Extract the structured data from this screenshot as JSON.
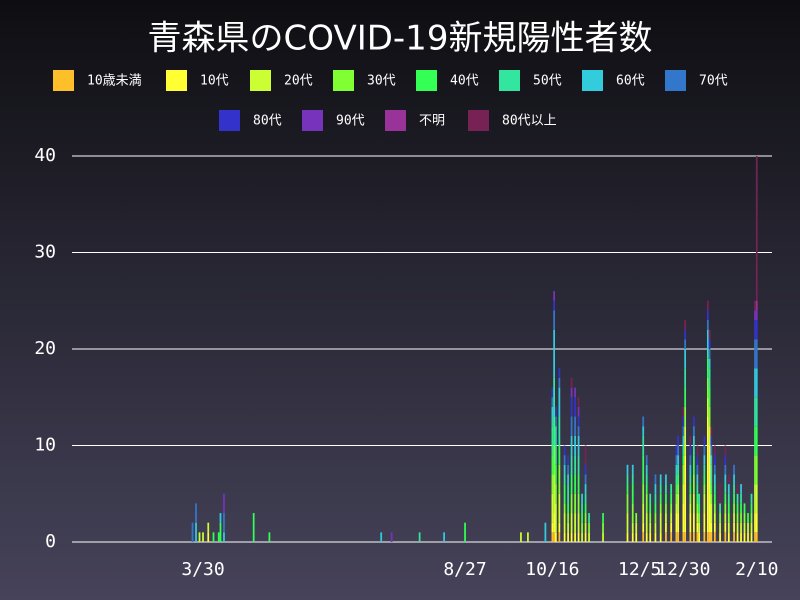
{
  "chart_data": {
    "type": "bar",
    "stacked": true,
    "title": "青森県のCOVID-19新規陽性者数",
    "x": [
      84,
      86,
      88,
      90,
      93,
      96,
      99,
      100,
      102,
      119,
      128,
      192,
      198,
      214,
      228,
      240,
      272,
      276,
      286,
      290,
      291,
      292,
      294,
      297,
      299,
      301,
      303,
      305,
      307,
      309,
      311,
      319,
      333,
      336,
      338,
      342,
      344,
      346,
      349,
      352,
      355,
      358,
      361,
      362,
      365,
      366,
      369,
      371,
      373,
      374,
      377,
      379,
      380,
      381,
      383,
      386,
      389,
      391,
      394,
      396,
      398,
      400,
      402,
      404,
      406,
      407
    ],
    "xlim": [
      15,
      410
    ],
    "xticks": [
      {
        "value": 90,
        "label": "3/30"
      },
      {
        "value": 240,
        "label": "8/27"
      },
      {
        "value": 290,
        "label": "10/16"
      },
      {
        "value": 340,
        "label": "12/5"
      },
      {
        "value": 365,
        "label": "12/30"
      },
      {
        "value": 407,
        "label": "2/10"
      }
    ],
    "ylim": [
      0,
      40
    ],
    "yticks": [
      0,
      10,
      20,
      30,
      40
    ],
    "grid": true,
    "series": [
      {
        "name": "10歳未満",
        "color": "#ffbf2a",
        "values": [
          0,
          0,
          0,
          0,
          0,
          0,
          0,
          0,
          0,
          0,
          0,
          0,
          0,
          0,
          0,
          0,
          0,
          0,
          0,
          1,
          1,
          0,
          1,
          0,
          0,
          0,
          0,
          0,
          0,
          0,
          0,
          0,
          0,
          0,
          0,
          1,
          0,
          0,
          0,
          0,
          1,
          1,
          1,
          1,
          1,
          1,
          1,
          1,
          1,
          0,
          1,
          1,
          1,
          1,
          1,
          0,
          1,
          0,
          1,
          0,
          0,
          0,
          0,
          0,
          1,
          1
        ]
      },
      {
        "name": "10代",
        "color": "#ffff33",
        "values": [
          0,
          0,
          0,
          0,
          1,
          0,
          0,
          0,
          0,
          0,
          0,
          0,
          0,
          0,
          0,
          0,
          0,
          0,
          0,
          1,
          2,
          1,
          1,
          1,
          1,
          1,
          1,
          1,
          0,
          1,
          0,
          0,
          1,
          1,
          1,
          1,
          1,
          1,
          1,
          1,
          1,
          1,
          2,
          2,
          3,
          8,
          2,
          2,
          1,
          1,
          2,
          12,
          9,
          1,
          1,
          1,
          1,
          1,
          1,
          1,
          1,
          1,
          1,
          1,
          2,
          2
        ]
      },
      {
        "name": "20代",
        "color": "#ccff33",
        "values": [
          0,
          0,
          1,
          1,
          1,
          0,
          0,
          0,
          0,
          0,
          0,
          0,
          0,
          0,
          0,
          0,
          1,
          1,
          0,
          3,
          4,
          3,
          3,
          2,
          1,
          2,
          2,
          2,
          1,
          1,
          1,
          1,
          2,
          1,
          1,
          2,
          2,
          1,
          1,
          2,
          1,
          1,
          1,
          2,
          2,
          3,
          1,
          2,
          1,
          1,
          2,
          2,
          2,
          2,
          1,
          1,
          1,
          1,
          1,
          1,
          1,
          1,
          1,
          1,
          3,
          3
        ]
      },
      {
        "name": "30代",
        "color": "#80ff33",
        "values": [
          0,
          0,
          0,
          0,
          0,
          0,
          0,
          0,
          0,
          0,
          0,
          0,
          0,
          0,
          0,
          0,
          0,
          0,
          0,
          2,
          3,
          2,
          3,
          1,
          1,
          2,
          2,
          2,
          1,
          1,
          1,
          1,
          2,
          2,
          1,
          2,
          2,
          1,
          1,
          1,
          1,
          1,
          1,
          1,
          2,
          2,
          1,
          2,
          1,
          1,
          1,
          2,
          2,
          1,
          1,
          1,
          1,
          1,
          1,
          1,
          1,
          1,
          0,
          1,
          3,
          3
        ]
      },
      {
        "name": "40代",
        "color": "#33ff55",
        "values": [
          0,
          0,
          0,
          0,
          0,
          1,
          1,
          2,
          0,
          3,
          1,
          0,
          0,
          0,
          0,
          2,
          0,
          0,
          0,
          2,
          3,
          2,
          2,
          2,
          1,
          2,
          2,
          2,
          1,
          1,
          0,
          1,
          1,
          2,
          0,
          3,
          1,
          1,
          1,
          1,
          1,
          1,
          1,
          1,
          1,
          2,
          1,
          2,
          1,
          1,
          1,
          2,
          2,
          1,
          1,
          0,
          1,
          1,
          1,
          1,
          1,
          1,
          1,
          1,
          3,
          3
        ]
      },
      {
        "name": "50代",
        "color": "#33e6a0",
        "values": [
          0,
          0,
          0,
          0,
          0,
          0,
          0,
          0,
          0,
          0,
          0,
          0,
          0,
          1,
          0,
          0,
          0,
          0,
          0,
          3,
          4,
          2,
          3,
          1,
          2,
          2,
          2,
          2,
          1,
          1,
          1,
          0,
          1,
          1,
          0,
          2,
          1,
          1,
          1,
          1,
          1,
          1,
          1,
          1,
          1,
          2,
          1,
          1,
          1,
          1,
          1,
          1,
          2,
          2,
          1,
          1,
          1,
          1,
          1,
          1,
          1,
          0,
          0,
          1,
          3,
          3
        ]
      },
      {
        "name": "60代",
        "color": "#33ccdd",
        "values": [
          0,
          2,
          0,
          0,
          0,
          0,
          0,
          1,
          1,
          0,
          0,
          1,
          0,
          0,
          1,
          0,
          0,
          0,
          2,
          2,
          5,
          2,
          3,
          1,
          1,
          2,
          2,
          2,
          1,
          1,
          0,
          0,
          1,
          1,
          0,
          1,
          1,
          0,
          1,
          1,
          1,
          0,
          1,
          1,
          1,
          2,
          1,
          1,
          1,
          0,
          1,
          2,
          1,
          1,
          1,
          0,
          1,
          1,
          1,
          0,
          1,
          0,
          0,
          0,
          3,
          3
        ]
      },
      {
        "name": "70代",
        "color": "#3377cc",
        "values": [
          2,
          2,
          0,
          0,
          0,
          0,
          0,
          0,
          2,
          0,
          0,
          0,
          0,
          0,
          0,
          0,
          0,
          0,
          0,
          1,
          2,
          1,
          1,
          1,
          1,
          2,
          2,
          1,
          0,
          1,
          0,
          0,
          0,
          0,
          0,
          1,
          1,
          0,
          1,
          0,
          0,
          0,
          1,
          1,
          1,
          1,
          1,
          1,
          1,
          0,
          1,
          1,
          1,
          1,
          1,
          0,
          1,
          0,
          1,
          0,
          0,
          0,
          0,
          0,
          3,
          3
        ]
      },
      {
        "name": "80代",
        "color": "#3333cc",
        "values": [
          0,
          0,
          0,
          0,
          0,
          0,
          0,
          0,
          0,
          0,
          0,
          0,
          0,
          0,
          0,
          0,
          0,
          0,
          0,
          1,
          1,
          1,
          1,
          1,
          1,
          2,
          2,
          1,
          0,
          1,
          0,
          0,
          0,
          0,
          0,
          0,
          0,
          0,
          0,
          0,
          0,
          0,
          1,
          1,
          1,
          1,
          1,
          1,
          1,
          0,
          1,
          1,
          1,
          1,
          1,
          0,
          1,
          0,
          0,
          0,
          0,
          0,
          0,
          0,
          2,
          2
        ]
      },
      {
        "name": "90代",
        "color": "#7733bb",
        "values": [
          0,
          0,
          0,
          0,
          0,
          0,
          0,
          0,
          2,
          0,
          0,
          0,
          1,
          0,
          0,
          0,
          0,
          0,
          0,
          0,
          1,
          0,
          0,
          0,
          0,
          1,
          1,
          1,
          0,
          0,
          0,
          0,
          0,
          0,
          0,
          0,
          0,
          0,
          0,
          0,
          0,
          0,
          0,
          0,
          0,
          0,
          0,
          0,
          0,
          0,
          0,
          0,
          0,
          0,
          0,
          0,
          0,
          0,
          0,
          0,
          0,
          0,
          0,
          0,
          1,
          1
        ]
      },
      {
        "name": "不明",
        "color": "#993399",
        "values": [
          0,
          0,
          0,
          0,
          0,
          0,
          0,
          0,
          0,
          0,
          0,
          0,
          0,
          0,
          0,
          0,
          0,
          0,
          0,
          0,
          0,
          0,
          0,
          0,
          0,
          0,
          0,
          0,
          0,
          0,
          0,
          0,
          0,
          0,
          0,
          0,
          0,
          0,
          0,
          0,
          0,
          0,
          0,
          0,
          0,
          0,
          0,
          0,
          0,
          0,
          0,
          0,
          0,
          0,
          0,
          0,
          0,
          0,
          0,
          0,
          0,
          0,
          0,
          0,
          0,
          1
        ]
      },
      {
        "name": "80代以上",
        "color": "#772255",
        "values": [
          0,
          0,
          0,
          0,
          0,
          0,
          0,
          0,
          0,
          0,
          0,
          0,
          0,
          0,
          0,
          0,
          0,
          0,
          0,
          0,
          0,
          0,
          0,
          0,
          0,
          1,
          0,
          1,
          0,
          2,
          0,
          0,
          0,
          0,
          0,
          0,
          0,
          0,
          0,
          0,
          0,
          0,
          0,
          0,
          1,
          1,
          1,
          0,
          1,
          0,
          0,
          1,
          1,
          1,
          1,
          2,
          1,
          1,
          0,
          1,
          0,
          0,
          0,
          0,
          1,
          15
        ]
      }
    ]
  }
}
